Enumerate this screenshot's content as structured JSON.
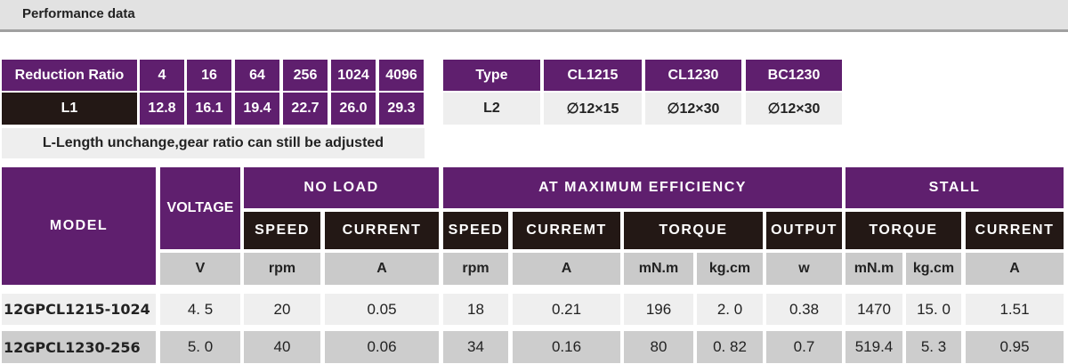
{
  "section_title": "Performance data",
  "ratio_table": {
    "header_label": "Reduction Ratio",
    "ratios": [
      "4",
      "16",
      "64",
      "256",
      "1024",
      "4096"
    ],
    "row_label": "L1",
    "l1_values": [
      "12.8",
      "16.1",
      "19.4",
      "22.7",
      "26.0",
      "29.3"
    ],
    "note": "L-Length unchange,gear ratio can still be adjusted"
  },
  "type_table": {
    "header_label": "Type",
    "types": [
      "CL1215",
      "CL1230",
      "BC1230"
    ],
    "row_label": "L2",
    "l2_values": [
      "∅12×15",
      "∅12×30",
      "∅12×30"
    ]
  },
  "perf_table": {
    "model_label": "MODEL",
    "voltage_label": "VOLTAGE",
    "groups": [
      "NO LOAD",
      "AT MAXIMUM EFFICIENCY",
      "STALL"
    ],
    "subheaders": [
      "SPEED",
      "CURRENT",
      "SPEED",
      "CURREMT",
      "TORQUE",
      "OUTPUT",
      "TORQUE",
      "CURRENT"
    ],
    "units": [
      "V",
      "rpm",
      "A",
      "rpm",
      "A",
      "mN.m",
      "kg.cm",
      "w",
      "mN.m",
      "kg.cm",
      "A"
    ],
    "rows": [
      {
        "model": "12GPCL1215-1024",
        "values": [
          "4. 5",
          "20",
          "0.05",
          "18",
          "0.21",
          "196",
          "2. 0",
          "0.38",
          "1470",
          "15. 0",
          "1.51"
        ]
      },
      {
        "model": "12GPCL1230-256",
        "values": [
          "5. 0",
          "40",
          "0.06",
          "34",
          "0.16",
          "80",
          "0. 82",
          "0.7",
          "519.4",
          "5. 3",
          "0.95"
        ]
      }
    ]
  },
  "colors": {
    "purple": "#5f1f6e",
    "black": "#231815",
    "unit_gray": "#cacaca"
  }
}
